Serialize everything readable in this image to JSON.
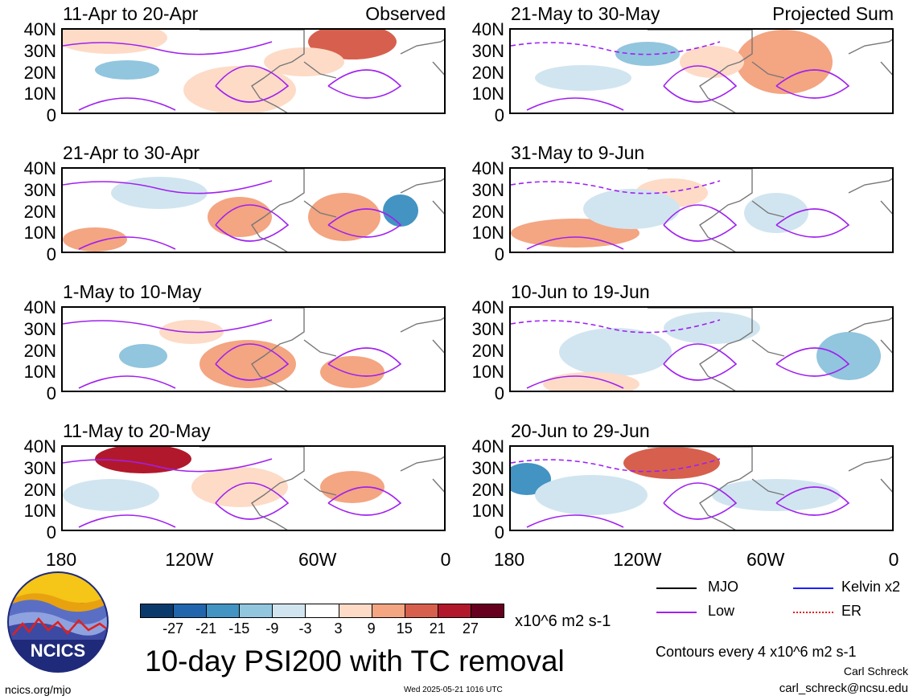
{
  "panels": [
    {
      "title": "11-Apr to 20-Apr",
      "tag": "Observed"
    },
    {
      "title": "21-May to 30-May",
      "tag": "Projected Sum"
    },
    {
      "title": "21-Apr to 30-Apr",
      "tag": ""
    },
    {
      "title": "31-May to 9-Jun",
      "tag": ""
    },
    {
      "title": "1-May to 10-May",
      "tag": ""
    },
    {
      "title": "10-Jun to 19-Jun",
      "tag": ""
    },
    {
      "title": "11-May to 20-May",
      "tag": ""
    },
    {
      "title": "20-Jun to 29-Jun",
      "tag": ""
    }
  ],
  "y_ticks": [
    "40N",
    "30N",
    "20N",
    "10N",
    "0"
  ],
  "x_ticks": [
    "180",
    "120W",
    "60W",
    "0"
  ],
  "colorbar": {
    "labels": [
      "-27",
      "-21",
      "-15",
      "-9",
      "-3",
      "3",
      "9",
      "15",
      "21",
      "27"
    ],
    "colors": [
      "#0a3a6b",
      "#2166ac",
      "#4393c3",
      "#92c5de",
      "#d1e5f0",
      "#ffffff",
      "#fddbc7",
      "#f4a582",
      "#d6604d",
      "#b2182b",
      "#67001f"
    ],
    "units": "x10^6 m2 s-1"
  },
  "main_title": "10-day PSI200 with TC removal",
  "legend": {
    "mjo": {
      "label": "MJO",
      "color": "#000000"
    },
    "kelvin": {
      "label": "Kelvin x2",
      "color": "#1e1eff"
    },
    "low": {
      "label": "Low",
      "color": "#a020f0"
    },
    "er": {
      "label": "ER",
      "color": "#e0201e"
    }
  },
  "contour_note": "Contours every 4 x10^6 m2 s-1",
  "author": "Carl Schreck",
  "email": "carl_schreck@ncsu.edu",
  "site": "ncics.org/mjo",
  "timestamp": "Wed 2025-05-21 1016 UTC",
  "logo_text": "NCICS"
}
